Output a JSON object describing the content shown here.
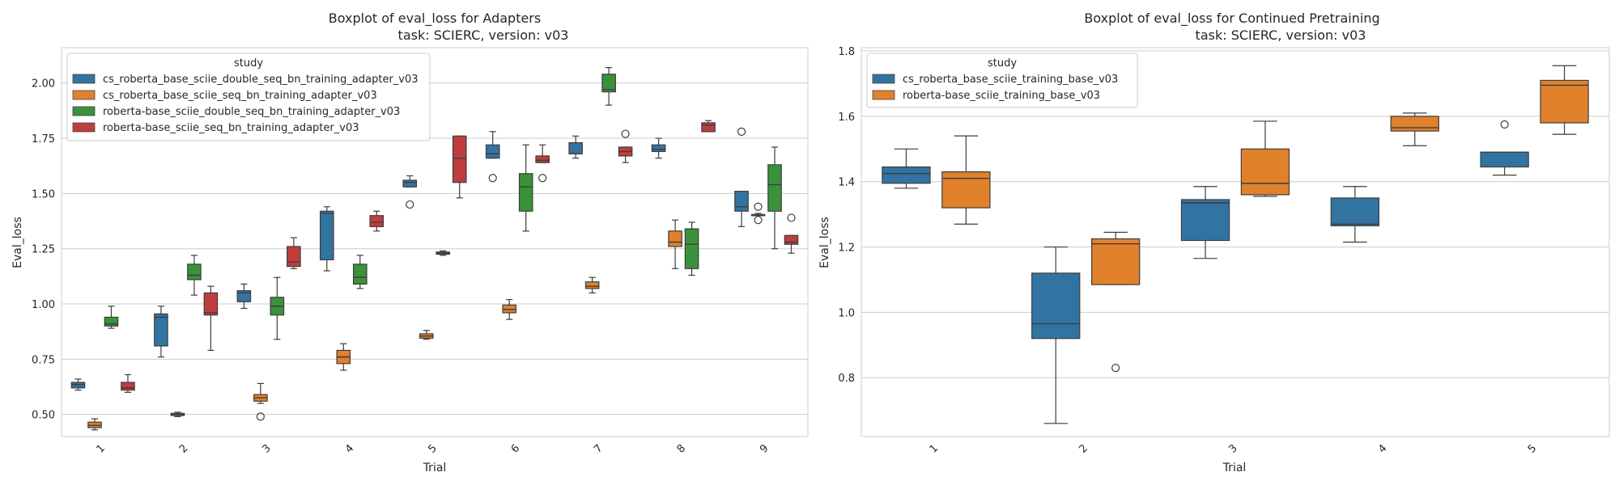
{
  "chart_data": [
    {
      "type": "boxplot",
      "title": "Boxplot of eval_loss for Adapters",
      "subtitle": "task: SCIERC, version: v03",
      "xlabel": "Trial",
      "ylabel": "Eval_loss",
      "categories": [
        "1",
        "2",
        "3",
        "4",
        "5",
        "6",
        "7",
        "8",
        "9"
      ],
      "ylim": [
        0.4,
        2.16
      ],
      "yticks": [
        "0.50",
        "0.75",
        "1.00",
        "1.25",
        "1.50",
        "1.75",
        "2.00"
      ],
      "grid": "horizontal",
      "legend_title": "study",
      "legend_position": "top-left",
      "series": [
        {
          "name": "cs_roberta_base_sciie_double_seq_bn_training_adapter_v03",
          "color": "#3274a1",
          "boxes": [
            {
              "min": 0.61,
              "q1": 0.62,
              "median": 0.635,
              "q3": 0.645,
              "max": 0.66,
              "outliers": []
            },
            {
              "min": 0.76,
              "q1": 0.81,
              "median": 0.94,
              "q3": 0.955,
              "max": 0.99,
              "outliers": []
            },
            {
              "min": 0.98,
              "q1": 1.01,
              "median": 1.05,
              "q3": 1.06,
              "max": 1.09,
              "outliers": []
            },
            {
              "min": 1.15,
              "q1": 1.2,
              "median": 1.41,
              "q3": 1.42,
              "max": 1.44,
              "outliers": []
            },
            {
              "min": 1.53,
              "q1": 1.53,
              "median": 1.55,
              "q3": 1.56,
              "max": 1.58,
              "outliers": [
                1.45
              ]
            },
            {
              "min": 1.66,
              "q1": 1.66,
              "median": 1.68,
              "q3": 1.72,
              "max": 1.78,
              "outliers": [
                1.57
              ]
            },
            {
              "min": 1.66,
              "q1": 1.68,
              "median": 1.68,
              "q3": 1.73,
              "max": 1.76,
              "outliers": []
            },
            {
              "min": 1.66,
              "q1": 1.69,
              "median": 1.7,
              "q3": 1.72,
              "max": 1.75,
              "outliers": []
            },
            {
              "min": 1.35,
              "q1": 1.42,
              "median": 1.44,
              "q3": 1.51,
              "max": 1.51,
              "outliers": [
                1.78
              ]
            }
          ]
        },
        {
          "name": "cs_roberta_base_sciie_seq_bn_training_adapter_v03",
          "color": "#e1812c",
          "boxes": [
            {
              "min": 0.43,
              "q1": 0.44,
              "median": 0.45,
              "q3": 0.465,
              "max": 0.48,
              "outliers": []
            },
            {
              "min": 0.49,
              "q1": 0.495,
              "median": 0.5,
              "q3": 0.505,
              "max": 0.51,
              "outliers": []
            },
            {
              "min": 0.55,
              "q1": 0.56,
              "median": 0.575,
              "q3": 0.59,
              "max": 0.64,
              "outliers": [
                0.49
              ]
            },
            {
              "min": 0.7,
              "q1": 0.73,
              "median": 0.76,
              "q3": 0.79,
              "max": 0.82,
              "outliers": []
            },
            {
              "min": 0.84,
              "q1": 0.845,
              "median": 0.855,
              "q3": 0.865,
              "max": 0.88,
              "outliers": []
            },
            {
              "min": 0.93,
              "q1": 0.96,
              "median": 0.975,
              "q3": 0.995,
              "max": 1.02,
              "outliers": []
            },
            {
              "min": 1.05,
              "q1": 1.07,
              "median": 1.08,
              "q3": 1.1,
              "max": 1.12,
              "outliers": []
            },
            {
              "min": 1.16,
              "q1": 1.26,
              "median": 1.28,
              "q3": 1.33,
              "max": 1.38,
              "outliers": []
            },
            {
              "min": 1.4,
              "q1": 1.4,
              "median": 1.4,
              "q3": 1.405,
              "max": 1.41,
              "outliers": [
                1.44,
                1.38
              ]
            }
          ]
        },
        {
          "name": "roberta-base_sciie_double_seq_bn_training_adapter_v03",
          "color": "#3a923a",
          "boxes": [
            {
              "min": 0.89,
              "q1": 0.9,
              "median": 0.91,
              "q3": 0.94,
              "max": 0.99,
              "outliers": []
            },
            {
              "min": 1.04,
              "q1": 1.11,
              "median": 1.13,
              "q3": 1.18,
              "max": 1.22,
              "outliers": []
            },
            {
              "min": 0.84,
              "q1": 0.95,
              "median": 0.99,
              "q3": 1.03,
              "max": 1.12,
              "outliers": []
            },
            {
              "min": 1.07,
              "q1": 1.09,
              "median": 1.12,
              "q3": 1.18,
              "max": 1.22,
              "outliers": []
            },
            {
              "min": 1.22,
              "q1": 1.225,
              "median": 1.23,
              "q3": 1.235,
              "max": 1.24,
              "outliers": []
            },
            {
              "min": 1.33,
              "q1": 1.42,
              "median": 1.53,
              "q3": 1.59,
              "max": 1.72,
              "outliers": []
            },
            {
              "min": 1.9,
              "q1": 1.96,
              "median": 1.97,
              "q3": 2.04,
              "max": 2.07,
              "outliers": []
            },
            {
              "min": 1.13,
              "q1": 1.16,
              "median": 1.27,
              "q3": 1.34,
              "max": 1.37,
              "outliers": []
            },
            {
              "min": 1.25,
              "q1": 1.42,
              "median": 1.54,
              "q3": 1.63,
              "max": 1.71,
              "outliers": []
            }
          ]
        },
        {
          "name": "roberta-base_sciie_seq_bn_training_adapter_v03",
          "color": "#c03d3e",
          "boxes": [
            {
              "min": 0.6,
              "q1": 0.61,
              "median": 0.62,
              "q3": 0.645,
              "max": 0.68,
              "outliers": []
            },
            {
              "min": 0.79,
              "q1": 0.95,
              "median": 0.96,
              "q3": 1.05,
              "max": 1.08,
              "outliers": []
            },
            {
              "min": 1.16,
              "q1": 1.17,
              "median": 1.19,
              "q3": 1.26,
              "max": 1.3,
              "outliers": []
            },
            {
              "min": 1.33,
              "q1": 1.35,
              "median": 1.37,
              "q3": 1.4,
              "max": 1.42,
              "outliers": []
            },
            {
              "min": 1.48,
              "q1": 1.55,
              "median": 1.66,
              "q3": 1.76,
              "max": 1.76,
              "outliers": []
            },
            {
              "min": 1.64,
              "q1": 1.64,
              "median": 1.65,
              "q3": 1.67,
              "max": 1.72,
              "outliers": [
                1.57
              ]
            },
            {
              "min": 1.64,
              "q1": 1.67,
              "median": 1.69,
              "q3": 1.71,
              "max": 1.71,
              "outliers": [
                1.77
              ]
            },
            {
              "min": 1.78,
              "q1": 1.78,
              "median": 1.81,
              "q3": 1.82,
              "max": 1.83,
              "outliers": []
            },
            {
              "min": 1.23,
              "q1": 1.27,
              "median": 1.28,
              "q3": 1.31,
              "max": 1.31,
              "outliers": [
                1.39
              ]
            }
          ]
        }
      ]
    },
    {
      "type": "boxplot",
      "title": "Boxplot of eval_loss for Continued Pretraining",
      "subtitle": "task: SCIERC, version: v03",
      "xlabel": "Trial",
      "ylabel": "Eval_loss",
      "categories": [
        "1",
        "2",
        "3",
        "4",
        "5"
      ],
      "ylim": [
        0.62,
        1.81
      ],
      "yticks": [
        "0.8",
        "1.0",
        "1.2",
        "1.4",
        "1.6",
        "1.8"
      ],
      "grid": "horizontal",
      "legend_title": "study",
      "legend_position": "top-left",
      "series": [
        {
          "name": "cs_roberta_base_sciie_training_base_v03",
          "color": "#3274a1",
          "boxes": [
            {
              "min": 1.38,
              "q1": 1.395,
              "median": 1.425,
              "q3": 1.445,
              "max": 1.5,
              "outliers": []
            },
            {
              "min": 0.66,
              "q1": 0.92,
              "median": 0.965,
              "q3": 1.12,
              "max": 1.2,
              "outliers": []
            },
            {
              "min": 1.165,
              "q1": 1.22,
              "median": 1.335,
              "q3": 1.345,
              "max": 1.385,
              "outliers": []
            },
            {
              "min": 1.215,
              "q1": 1.265,
              "median": 1.27,
              "q3": 1.35,
              "max": 1.385,
              "outliers": []
            },
            {
              "min": 1.42,
              "q1": 1.445,
              "median": 1.49,
              "q3": 1.49,
              "max": 1.49,
              "outliers": [
                1.575
              ]
            }
          ]
        },
        {
          "name": "roberta-base_sciie_training_base_v03",
          "color": "#e1812c",
          "boxes": [
            {
              "min": 1.27,
              "q1": 1.32,
              "median": 1.41,
              "q3": 1.43,
              "max": 1.54,
              "outliers": []
            },
            {
              "min": 1.085,
              "q1": 1.085,
              "median": 1.21,
              "q3": 1.225,
              "max": 1.245,
              "outliers": [
                0.83
              ]
            },
            {
              "min": 1.355,
              "q1": 1.36,
              "median": 1.395,
              "q3": 1.5,
              "max": 1.585,
              "outliers": []
            },
            {
              "min": 1.51,
              "q1": 1.555,
              "median": 1.565,
              "q3": 1.6,
              "max": 1.61,
              "outliers": []
            },
            {
              "min": 1.545,
              "q1": 1.58,
              "median": 1.695,
              "q3": 1.71,
              "max": 1.755,
              "outliers": []
            }
          ]
        }
      ]
    }
  ]
}
